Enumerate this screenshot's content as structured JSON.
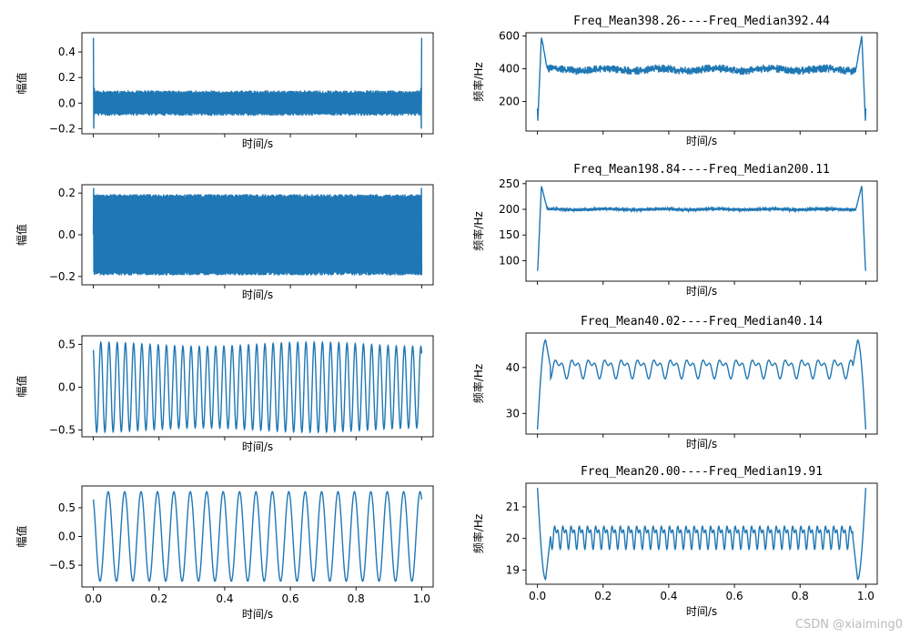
{
  "watermark": "CSDN @xiaiming0",
  "line_color": "#1f77b4",
  "chart_data": [
    {
      "type": "line",
      "title": "",
      "xlabel": "时间/s",
      "ylabel": "幅值",
      "xlim": [
        -0.035,
        1.035
      ],
      "ylim": [
        -0.24,
        0.55
      ],
      "yticks": [
        0.4,
        0.2,
        0.0,
        -0.2
      ],
      "ytick_labels": [
        "0.4",
        "0.2",
        "0.0",
        "−0.2"
      ],
      "xticks": [
        0.0,
        0.2,
        0.4,
        0.6,
        0.8,
        1.0
      ],
      "xtick_labels": [],
      "signal": {
        "kind": "noise",
        "amplitude": 0.1,
        "spikes": [
          0.51,
          -0.2
        ]
      }
    },
    {
      "type": "line",
      "title": "Freq_Mean398.26----Freq_Median392.44",
      "xlabel": "时间/s",
      "ylabel": "频率/Hz",
      "xlim": [
        -0.035,
        1.035
      ],
      "ylim": [
        20,
        620
      ],
      "yticks": [
        600,
        400,
        200
      ],
      "ytick_labels": [
        "600",
        "400",
        "200"
      ],
      "xticks": [
        0.0,
        0.2,
        0.4,
        0.6,
        0.8,
        1.0
      ],
      "xtick_labels": [],
      "signal": {
        "kind": "freq_band",
        "center": 395,
        "band": 50,
        "edge_peak": 600,
        "edge_low": 30
      }
    },
    {
      "type": "line",
      "title": "",
      "xlabel": "时间/s",
      "ylabel": "幅值",
      "xlim": [
        -0.035,
        1.035
      ],
      "ylim": [
        -0.24,
        0.24
      ],
      "yticks": [
        0.2,
        0.0,
        -0.2
      ],
      "ytick_labels": [
        "0.2",
        "0.0",
        "−0.2"
      ],
      "xticks": [
        0.0,
        0.2,
        0.4,
        0.6,
        0.8,
        1.0
      ],
      "xtick_labels": [],
      "signal": {
        "kind": "dense",
        "amplitude": 0.195
      }
    },
    {
      "type": "line",
      "title": "Freq_Mean198.84----Freq_Median200.11",
      "xlabel": "时间/s",
      "ylabel": "频率/Hz",
      "xlim": [
        -0.035,
        1.035
      ],
      "ylim": [
        60,
        255
      ],
      "yticks": [
        250,
        200,
        150,
        100
      ],
      "ytick_labels": [
        "250",
        "200",
        "150",
        "100"
      ],
      "xticks": [
        0.0,
        0.2,
        0.4,
        0.6,
        0.8,
        1.0
      ],
      "xtick_labels": [],
      "signal": {
        "kind": "freq_band",
        "center": 200,
        "band": 6,
        "edge_peak": 246,
        "edge_low": 70
      }
    },
    {
      "type": "line",
      "title": "",
      "xlabel": "时间/s",
      "ylabel": "幅值",
      "xlim": [
        -0.035,
        1.035
      ],
      "ylim": [
        -0.58,
        0.6
      ],
      "yticks": [
        0.5,
        0.0,
        -0.5
      ],
      "ytick_labels": [
        "0.5",
        "0.0",
        "−0.5"
      ],
      "xticks": [
        0.0,
        0.2,
        0.4,
        0.6,
        0.8,
        1.0
      ],
      "xtick_labels": [],
      "signal": {
        "kind": "sine",
        "cycles": 40,
        "amplitude": 0.5,
        "beat": 0.05
      }
    },
    {
      "type": "line",
      "title": "Freq_Mean40.02----Freq_Median40.14",
      "xlabel": "时间/s",
      "ylabel": "频率/Hz",
      "xlim": [
        -0.035,
        1.035
      ],
      "ylim": [
        25.5,
        47.5
      ],
      "yticks": [
        40,
        30
      ],
      "ytick_labels": [
        "40",
        "30"
      ],
      "xticks": [
        0.0,
        0.2,
        0.4,
        0.6,
        0.8,
        1.0
      ],
      "xtick_labels": [],
      "signal": {
        "kind": "freq_wave",
        "center": 40,
        "amp": 2.5,
        "ripples": 20,
        "start": 26.5,
        "peak": 46
      }
    },
    {
      "type": "line",
      "title": "",
      "xlabel": "时间/s",
      "ylabel": "幅值",
      "xlim": [
        -0.035,
        1.035
      ],
      "ylim": [
        -0.88,
        0.88
      ],
      "yticks": [
        0.5,
        0.0,
        -0.5
      ],
      "ytick_labels": [
        "0.5",
        "0.0",
        "−0.5"
      ],
      "xticks": [
        0.0,
        0.2,
        0.4,
        0.6,
        0.8,
        1.0
      ],
      "xtick_labels": [
        "0.0",
        "0.2",
        "0.4",
        "0.6",
        "0.8",
        "1.0"
      ],
      "signal": {
        "kind": "sine",
        "cycles": 20,
        "amplitude": 0.78,
        "beat": 0.0
      }
    },
    {
      "type": "line",
      "title": "Freq_Mean20.00----Freq_Median19.91",
      "xlabel": "时间/s",
      "ylabel": "频率/Hz",
      "xlim": [
        -0.035,
        1.035
      ],
      "ylim": [
        18.55,
        21.75
      ],
      "yticks": [
        21,
        20,
        19
      ],
      "ytick_labels": [
        "21",
        "20",
        "19"
      ],
      "xticks": [
        0.0,
        0.2,
        0.4,
        0.6,
        0.8,
        1.0
      ],
      "xtick_labels": [
        "0.0",
        "0.2",
        "0.4",
        "0.6",
        "0.8",
        "1.0"
      ],
      "signal": {
        "kind": "freq_wave",
        "center": 20.1,
        "amp": 0.45,
        "ripples": 40,
        "start": 21.6,
        "peak": 18.7
      }
    }
  ]
}
